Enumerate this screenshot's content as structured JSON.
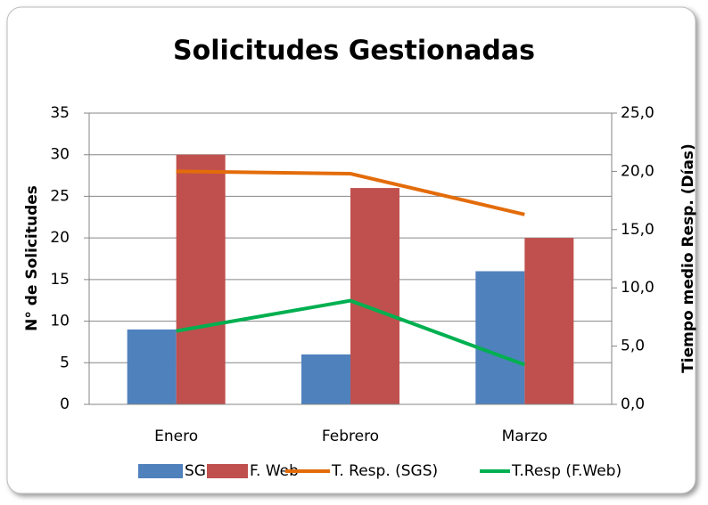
{
  "chart_data": {
    "type": "bar",
    "title": "Solicitudes Gestionadas",
    "categories": [
      "Enero",
      "Febrero",
      "Marzo"
    ],
    "ylabel": "N° de Solicitudes",
    "y2label": "Tiempo medio Resp. (Días)",
    "ylim": [
      0,
      35
    ],
    "yticks": [
      0,
      5,
      10,
      15,
      20,
      25,
      30,
      35
    ],
    "y2lim": [
      0,
      25
    ],
    "y2ticks": [
      {
        "value": 0,
        "label": "0,0"
      },
      {
        "value": 5,
        "label": "5,0"
      },
      {
        "value": 10,
        "label": "10,0"
      },
      {
        "value": 15,
        "label": "15,0"
      },
      {
        "value": 20,
        "label": "20,0"
      },
      {
        "value": 25,
        "label": "25,0"
      }
    ],
    "grid": true,
    "legend": "bottom",
    "series": [
      {
        "name": "SGS",
        "type": "bar",
        "color": "#4f81bd",
        "values": [
          9,
          6,
          16
        ]
      },
      {
        "name": "F. Web",
        "type": "bar",
        "color": "#c0504d",
        "values": [
          30,
          26,
          20
        ]
      },
      {
        "name": "T. Resp. (SGS)",
        "type": "line",
        "axis": "y2",
        "color": "#e36c0a",
        "values": [
          20.0,
          19.8,
          16.3
        ]
      },
      {
        "name": "T.Resp (F.Web)",
        "type": "line",
        "axis": "y2",
        "color": "#00b050",
        "values": [
          6.3,
          8.9,
          3.4
        ]
      }
    ]
  }
}
